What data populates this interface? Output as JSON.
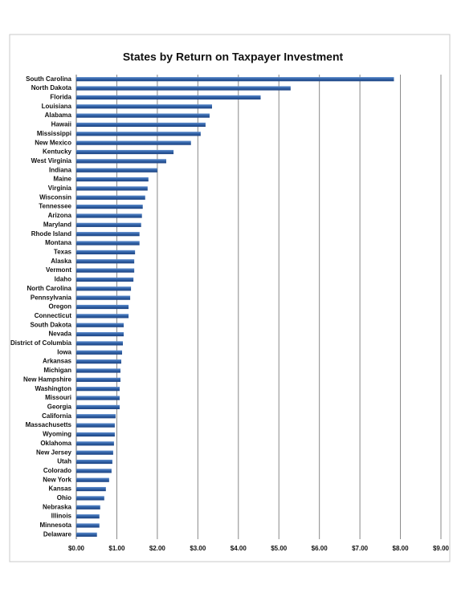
{
  "chart_data": {
    "type": "hbar",
    "title": "States by Return on Taxpayer Investment",
    "categories": [
      "South Carolina",
      "North Dakota",
      "Florida",
      "Louisiana",
      "Alabama",
      "Hawaii",
      "Mississippi",
      "New Mexico",
      "Kentucky",
      "West Virginia",
      "Indiana",
      "Maine",
      "Virginia",
      "Wisconsin",
      "Tennessee",
      "Arizona",
      "Maryland",
      "Rhode Island",
      "Montana",
      "Texas",
      "Alaska",
      "Vermont",
      "Idaho",
      "North Carolina",
      "Pennsylvania",
      "Oregon",
      "Connecticut",
      "South Dakota",
      "Nevada",
      "District of Columbia",
      "Iowa",
      "Arkansas",
      "Michigan",
      "New Hampshire",
      "Washington",
      "Missouri",
      "Georgia",
      "California",
      "Massachusetts",
      "Wyoming",
      "Oklahoma",
      "New Jersey",
      "Utah",
      "Colorado",
      "New York",
      "Kansas",
      "Ohio",
      "Nebraska",
      "Illinois",
      "Minnesota",
      "Delaware"
    ],
    "values": [
      7.84,
      5.29,
      4.55,
      3.35,
      3.29,
      3.19,
      3.07,
      2.83,
      2.4,
      2.22,
      2.0,
      1.78,
      1.76,
      1.7,
      1.64,
      1.62,
      1.6,
      1.56,
      1.56,
      1.45,
      1.43,
      1.43,
      1.41,
      1.35,
      1.33,
      1.29,
      1.29,
      1.17,
      1.17,
      1.15,
      1.13,
      1.11,
      1.09,
      1.09,
      1.07,
      1.07,
      1.07,
      0.97,
      0.95,
      0.95,
      0.93,
      0.91,
      0.89,
      0.87,
      0.81,
      0.73,
      0.69,
      0.59,
      0.57,
      0.57,
      0.51
    ],
    "color": "#2f5fa3",
    "xlim": [
      0,
      9
    ],
    "xticks": [
      {
        "value": 0,
        "label": "$0.00"
      },
      {
        "value": 1,
        "label": "$1.00"
      },
      {
        "value": 2,
        "label": "$2.00"
      },
      {
        "value": 3,
        "label": "$3.00"
      },
      {
        "value": 4,
        "label": "$4.00"
      },
      {
        "value": 5,
        "label": "$5.00"
      },
      {
        "value": 6,
        "label": "$6.00"
      },
      {
        "value": 7,
        "label": "$7.00"
      },
      {
        "value": 8,
        "label": "$8.00"
      },
      {
        "value": 9,
        "label": "$9.00"
      }
    ],
    "grid": true
  }
}
